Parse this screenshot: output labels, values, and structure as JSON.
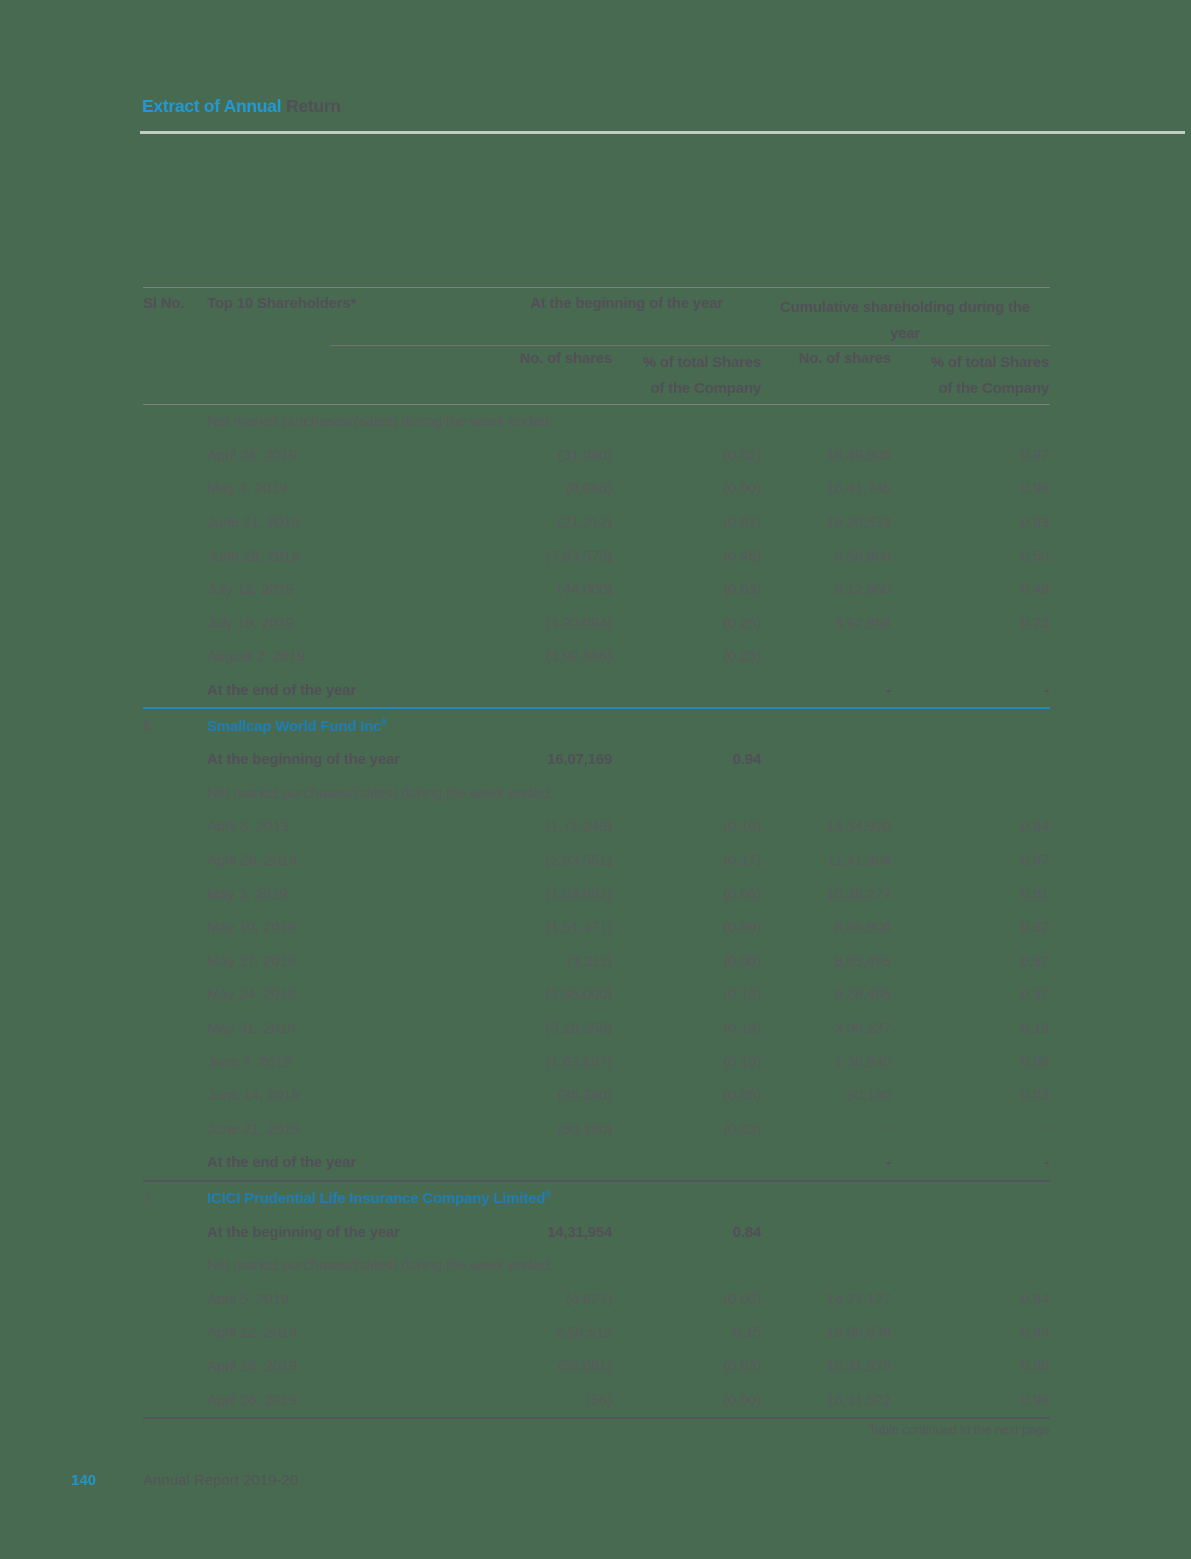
{
  "page": {
    "title_highlight": "Extract of Annual",
    "title_rest": "Return",
    "table_note": "Table continued to the next page",
    "footer": {
      "page_number": "140",
      "report_name": "Annual Report 2019-20"
    }
  },
  "colors": {
    "background_green": "#486A50",
    "accent_blue": "#2299D4",
    "section_name_blue": "#1E7EB5",
    "divider_blue": "#2386BE",
    "text_gray": "#5B5860"
  },
  "table": {
    "header": {
      "sl_no": "Sl No.",
      "shareholders": "Top 10 Shareholders*",
      "group_beginning": "At the beginning of the year",
      "group_cumulative": "Cumulative shareholding during the year",
      "sub_shares": "No. of shares",
      "sub_pct_line1": "% of total Shares",
      "sub_pct_line2": "of the Company"
    },
    "rows": [
      {
        "type": "label",
        "label": "Net market purchases/(sales) during the week ended:"
      },
      {
        "type": "data",
        "label": "April 26, 2019",
        "c1": "(31,060)",
        "c2": "(0.02)",
        "c3": "16,49,805",
        "c4": "0.97"
      },
      {
        "type": "data",
        "label": "May 3, 2019",
        "c1": "(8,060)",
        "c2": "(0.00)",
        "c3": "16,41,745",
        "c4": "0.96"
      },
      {
        "type": "data",
        "label": "June 21, 2019",
        "c1": "(21,212)",
        "c2": "(0.01)",
        "c3": "16,20,533",
        "c4": "0.95"
      },
      {
        "type": "data",
        "label": "June 28, 2019",
        "c1": "(7,63,573)",
        "c2": "(0.45)",
        "c3": "8,56,960",
        "c4": "0.50"
      },
      {
        "type": "data",
        "label": "July 12, 2019",
        "c1": "(44,000)",
        "c2": "(0.03)",
        "c3": "8,12,960",
        "c4": "0.48"
      },
      {
        "type": "data",
        "label": "July 19, 2019",
        "c1": "(4,20,094)",
        "c2": "(0.25)",
        "c3": "3,92,866",
        "c4": "0.23"
      },
      {
        "type": "data",
        "label": "August 2, 2019",
        "c1": "(3,92,866)",
        "c2": "(0.23)",
        "c3": "-",
        "c4": "-"
      },
      {
        "type": "bold",
        "label": "At the end of the year",
        "c1": "",
        "c2": "",
        "c3": "-",
        "c4": "-"
      },
      {
        "type": "divider",
        "style": "blue"
      },
      {
        "type": "name",
        "sl": "6.",
        "label": "Smallcap World Fund Inc",
        "sup": "#"
      },
      {
        "type": "bold",
        "label": "At the beginning of the year",
        "c1": "16,07,169",
        "c2": "0.94",
        "c3": "",
        "c4": ""
      },
      {
        "type": "label",
        "label": "Net market purchases/(sales) during the week ended:"
      },
      {
        "type": "data",
        "label": "April 5, 2019",
        "c1": "(1,72,249)",
        "c2": "(0.10)",
        "c3": "14,34,920",
        "c4": "0.84"
      },
      {
        "type": "data",
        "label": "April 26, 2019",
        "c1": "(2,93,551)",
        "c2": "(0.17)",
        "c3": "11,41,369",
        "c4": "0.67"
      },
      {
        "type": "data",
        "label": "May 3, 2019",
        "c1": "(1,03,092)",
        "c2": "(0.06)",
        "c3": "10,38,277",
        "c4": "0.61"
      },
      {
        "type": "data",
        "label": "May 10, 2019",
        "c1": "(1,51,471)",
        "c2": "(0.09)",
        "c3": "8,86,806",
        "c4": "0.52"
      },
      {
        "type": "data",
        "label": "May 17, 2019",
        "c1": "(3,311)",
        "c2": "(0.00)",
        "c3": "8,83,495",
        "c4": "0.52"
      },
      {
        "type": "data",
        "label": "May 24, 2019",
        "c1": "(2,55,000)",
        "c2": "(0.15)",
        "c3": "6,28,495",
        "c4": "0.37"
      },
      {
        "type": "data",
        "label": "May 31, 2019",
        "c1": "(3,28,258)",
        "c2": "(0.19)",
        "c3": "3,00,237",
        "c4": "0.18"
      },
      {
        "type": "data",
        "label": "June 7, 2019",
        "c1": "(1,63,697)",
        "c2": "(0.10)",
        "c3": "1,36,540",
        "c4": "0.08"
      },
      {
        "type": "data",
        "label": "June 14, 2019",
        "c1": "(86,360)",
        "c2": "(0.05)",
        "c3": "50,180",
        "c4": "0.03"
      },
      {
        "type": "data",
        "label": "June 21, 2019",
        "c1": "(50,180)",
        "c2": "(0.03)",
        "c3": "-",
        "c4": "-"
      },
      {
        "type": "bold",
        "label": "At the end of the year",
        "c1": "",
        "c2": "",
        "c3": "-",
        "c4": "-"
      },
      {
        "type": "divider",
        "style": "gray"
      },
      {
        "type": "name",
        "sl": "7.",
        "label": "ICICI Prudential Life Insurance Company Limited",
        "sup": "#"
      },
      {
        "type": "bold",
        "label": "At the beginning of the year",
        "c1": "14,31,954",
        "c2": "0.84",
        "c3": "",
        "c4": ""
      },
      {
        "type": "label",
        "label": "Net market purchases/(sales) during the week ended:"
      },
      {
        "type": "data",
        "label": "April 5, 2019",
        "c1": "(4,827)",
        "c2": "(0.00)",
        "c3": "14,27,127",
        "c4": "0.84"
      },
      {
        "type": "data",
        "label": "April 12, 2019",
        "c1": "2,59,512",
        "c2": "0.15",
        "c3": "16,86,639",
        "c4": "0.99"
      },
      {
        "type": "data",
        "label": "April 19, 2019",
        "c1": "(55,061)",
        "c2": "(0.03)",
        "c3": "16,31,578",
        "c4": "0.96"
      },
      {
        "type": "data",
        "label": "April 26, 2019",
        "c1": "(56)",
        "c2": "(0.00)",
        "c3": "16,31,522",
        "c4": "0.96"
      }
    ]
  }
}
